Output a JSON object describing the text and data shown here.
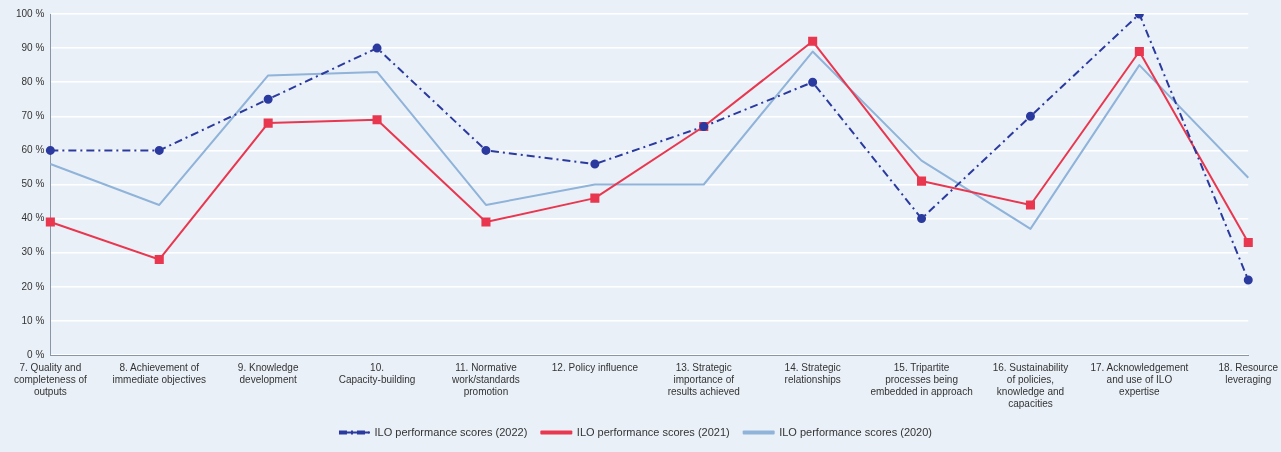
{
  "chart_data": {
    "type": "line",
    "categories": [
      "7. Quality and completeness of outputs",
      "8. Achievement of immediate objectives",
      "9. Knowledge development",
      "10. Capacity-building",
      "11. Normative work/standards promotion",
      "12. Policy influence",
      "13. Strategic importance of results achieved",
      "14. Strategic relationships",
      "15. Tripartite processes being embedded in approach",
      "16. Sustainability of policies, knowledge and capacities",
      "17. Acknowledgement and use of ILO expertise",
      "18. Resource leveraging"
    ],
    "series": [
      {
        "name": "ILO performance scores (2022)",
        "color": "#2b3a9e",
        "marker": "circle",
        "line_style": "dashed",
        "values": [
          60,
          60,
          75,
          90,
          60,
          56,
          67,
          80,
          40,
          70,
          100,
          22
        ]
      },
      {
        "name": "ILO performance scores (2021)",
        "color": "#e8374f",
        "marker": "square",
        "line_style": "solid",
        "values": [
          39,
          28,
          68,
          69,
          39,
          46,
          67,
          92,
          51,
          44,
          89,
          33
        ]
      },
      {
        "name": "ILO performance scores (2020)",
        "color": "#8fb3d9",
        "marker": "none",
        "line_style": "solid",
        "values": [
          56,
          44,
          82,
          83,
          44,
          50,
          50,
          89,
          57,
          37,
          85,
          52
        ]
      }
    ],
    "ylim": [
      0,
      100
    ],
    "yticks": [
      {
        "value": 0,
        "label": "0 %"
      },
      {
        "value": 10,
        "label": "10 %"
      },
      {
        "value": 20,
        "label": "20 %"
      },
      {
        "value": 30,
        "label": "30 %"
      },
      {
        "value": 40,
        "label": "40 %"
      },
      {
        "value": 50,
        "label": "50 %"
      },
      {
        "value": 60,
        "label": "60 %"
      },
      {
        "value": 70,
        "label": "70 %"
      },
      {
        "value": 80,
        "label": "80 %"
      },
      {
        "value": 90,
        "label": "90 %"
      },
      {
        "value": 100,
        "label": "100 %"
      }
    ],
    "grid": "y",
    "legend": "bottom"
  }
}
